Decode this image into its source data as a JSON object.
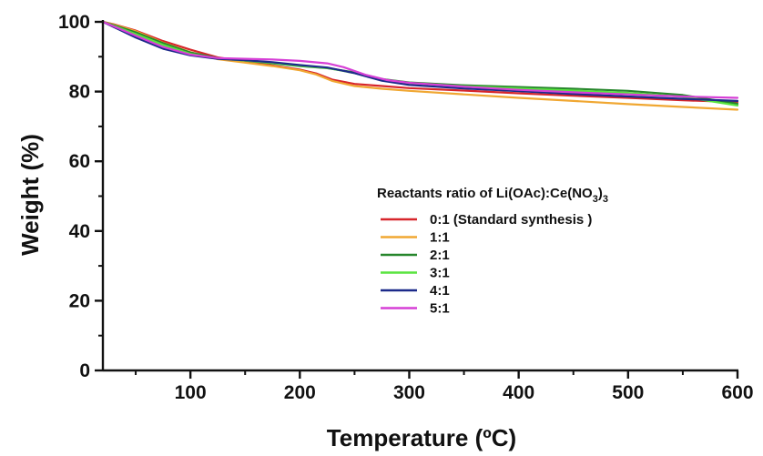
{
  "chart_data": {
    "type": "line",
    "xlabel": "Temperature (ºC)",
    "ylabel": "Weight (%)",
    "xlim": [
      20,
      600
    ],
    "ylim": [
      0,
      100
    ],
    "xticks": [
      100,
      200,
      300,
      400,
      500,
      600
    ],
    "yticks": [
      0,
      20,
      40,
      60,
      80,
      100
    ],
    "grid": false,
    "legend": {
      "title_main": "Reactants ratio of Li(OAc):Ce(NO",
      "title_sub": "3",
      "title_end": ")",
      "title_sub2": "3",
      "placement": "center-right"
    },
    "series": [
      {
        "name": "0:1 (Standard synthesis )",
        "color": "#d7262b",
        "x": [
          20,
          30,
          50,
          75,
          100,
          125,
          150,
          175,
          200,
          215,
          230,
          250,
          275,
          300,
          350,
          400,
          450,
          500,
          550,
          600
        ],
        "y": [
          100,
          99.3,
          97.5,
          94.5,
          92,
          89.8,
          88.7,
          87.5,
          86.3,
          85.2,
          83.4,
          82.2,
          81.6,
          81,
          80.3,
          79.5,
          78.8,
          78.2,
          77.5,
          77
        ]
      },
      {
        "name": "1:1",
        "color": "#f0a732",
        "x": [
          20,
          30,
          50,
          75,
          100,
          125,
          150,
          175,
          200,
          215,
          230,
          250,
          275,
          300,
          350,
          400,
          450,
          500,
          550,
          600
        ],
        "y": [
          100,
          99.2,
          97.3,
          94,
          91.3,
          89.3,
          88.3,
          87.3,
          86.1,
          84.9,
          83,
          81.6,
          80.8,
          80.2,
          79.2,
          78.2,
          77.3,
          76.4,
          75.6,
          74.8
        ]
      },
      {
        "name": "2:1",
        "color": "#27862c",
        "x": [
          20,
          30,
          50,
          75,
          100,
          125,
          150,
          175,
          200,
          225,
          250,
          275,
          300,
          350,
          400,
          450,
          500,
          550,
          600
        ],
        "y": [
          100,
          99,
          97,
          93.9,
          91.2,
          89.6,
          88.9,
          88.1,
          87.3,
          86.7,
          85.5,
          83.6,
          82.6,
          81.8,
          81.3,
          80.8,
          80.2,
          79,
          76.5
        ]
      },
      {
        "name": "3:1",
        "color": "#58e43f",
        "x": [
          20,
          30,
          50,
          75,
          100,
          125,
          150,
          175,
          200,
          225,
          250,
          275,
          300,
          350,
          400,
          450,
          500,
          550,
          600
        ],
        "y": [
          100,
          98.8,
          96.5,
          93.4,
          90.8,
          89.5,
          88.9,
          88.2,
          87.4,
          86.8,
          85.3,
          83.2,
          82.4,
          81.5,
          80.9,
          80.3,
          79.6,
          78.5,
          76
        ]
      },
      {
        "name": "4:1",
        "color": "#1c2a8a",
        "x": [
          20,
          30,
          50,
          75,
          100,
          125,
          150,
          175,
          200,
          225,
          250,
          275,
          300,
          350,
          400,
          450,
          500,
          550,
          600
        ],
        "y": [
          100,
          98.5,
          95.5,
          92.3,
          90.4,
          89.4,
          89,
          88.4,
          87.6,
          86.9,
          85.3,
          83.1,
          81.9,
          80.9,
          80.1,
          79.3,
          78.6,
          77.9,
          77.3
        ]
      },
      {
        "name": "5:1",
        "color": "#d63fd6",
        "x": [
          20,
          30,
          50,
          75,
          100,
          125,
          150,
          175,
          200,
          225,
          240,
          260,
          280,
          300,
          350,
          400,
          450,
          500,
          550,
          600
        ],
        "y": [
          100,
          98.7,
          96,
          92.8,
          90.6,
          89.6,
          89.4,
          89.2,
          88.8,
          88.1,
          87,
          84.8,
          83.3,
          82.5,
          81.4,
          80.5,
          79.8,
          79.2,
          78.6,
          78.2
        ]
      }
    ]
  }
}
